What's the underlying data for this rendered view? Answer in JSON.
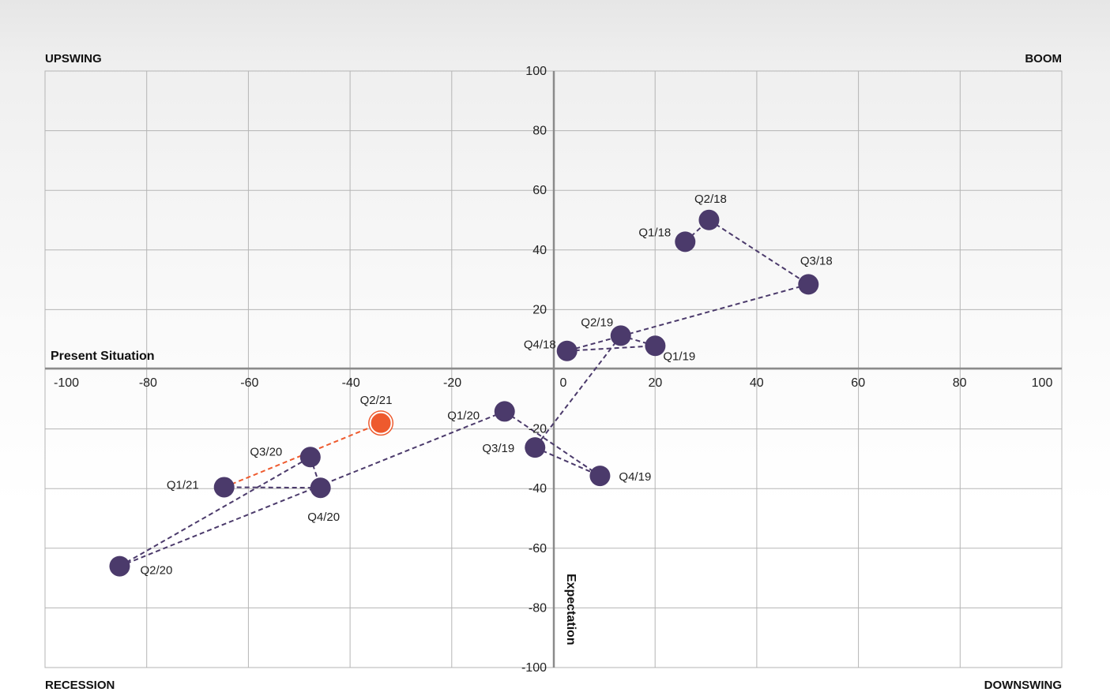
{
  "chart_data": {
    "type": "scatter",
    "corners": {
      "top_left": "UPSWING",
      "top_right": "BOOM",
      "bottom_left": "RECESSION",
      "bottom_right": "DOWNSWING"
    },
    "xlabel": "Present Situation",
    "ylabel": "Expectation",
    "xlim": [
      -100,
      100
    ],
    "ylim": [
      -100,
      100
    ],
    "x_ticks": [
      -100,
      -80,
      -60,
      -40,
      -20,
      0,
      20,
      40,
      60,
      80,
      100
    ],
    "y_ticks": [
      100,
      80,
      60,
      40,
      20,
      -20,
      -40,
      -60,
      -80,
      -100
    ],
    "grid": true,
    "colors": {
      "series": "#4b3a6b",
      "highlight": "#ee5a2e",
      "grid": "#b5b5b5",
      "axis": "#8a8a8a"
    },
    "points": [
      {
        "label": "Q1/18",
        "x": 25.9,
        "y": 42.5
      },
      {
        "label": "Q2/18",
        "x": 30.6,
        "y": 49.8
      },
      {
        "label": "Q3/18",
        "x": 50.2,
        "y": 28.2
      },
      {
        "label": "Q4/18",
        "x": 2.6,
        "y": 5.9
      },
      {
        "label": "Q1/19",
        "x": 20.0,
        "y": 7.6
      },
      {
        "label": "Q2/19",
        "x": 13.2,
        "y": 11.0
      },
      {
        "label": "Q3/19",
        "x": -3.7,
        "y": -26.5
      },
      {
        "label": "Q4/19",
        "x": 9.1,
        "y": -36.0
      },
      {
        "label": "Q1/20",
        "x": -9.7,
        "y": -14.4
      },
      {
        "label": "Q2/20",
        "x": -85.6,
        "y": -66.3
      },
      {
        "label": "Q3/20",
        "x": -48.0,
        "y": -29.7
      },
      {
        "label": "Q4/20",
        "x": -46.0,
        "y": -40.0
      },
      {
        "label": "Q1/21",
        "x": -65.0,
        "y": -39.8
      },
      {
        "label": "Q2/21",
        "x": -34.1,
        "y": -18.3,
        "highlight": true
      }
    ]
  }
}
